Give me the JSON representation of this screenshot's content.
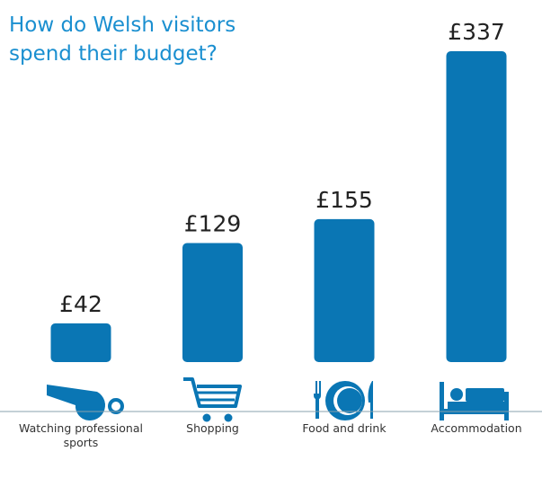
{
  "chart_data": {
    "type": "bar",
    "title": "How do Welsh visitors spend their budget?",
    "categories": [
      "Watching professional sports",
      "Shopping",
      "Food and drink",
      "Accommodation"
    ],
    "values": [
      42,
      129,
      155,
      337
    ],
    "value_labels": [
      "£42",
      "£129",
      "£155",
      "£337"
    ],
    "color": "#0a76b4"
  }
}
